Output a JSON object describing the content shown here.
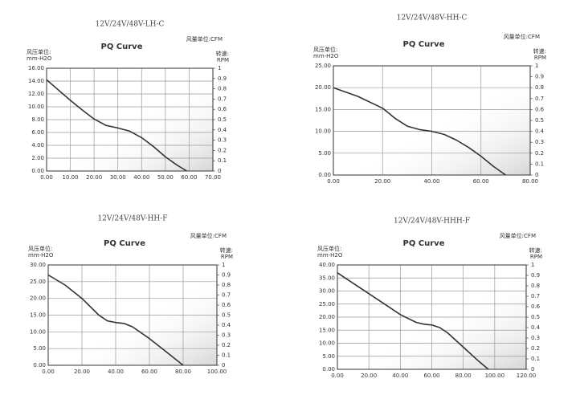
{
  "chart_data": [
    {
      "type": "line",
      "title": "12V/24V/48V-LH-C",
      "subtitle": "PQ Curve",
      "x_label": "风量单位:CFM",
      "y_label": "风压单位:",
      "y_unit": "mm-H2O",
      "y2_label": "转速:",
      "y2_unit": "RPM",
      "color": "#333333",
      "grid": true,
      "x": [
        0,
        5,
        10,
        15,
        20,
        25,
        30,
        35,
        40,
        45,
        50,
        55,
        59
      ],
      "values": [
        14.2,
        12.6,
        11,
        9.5,
        8.1,
        7.1,
        6.7,
        6.2,
        5.2,
        3.8,
        2.2,
        0.9,
        0
      ],
      "xlim": [
        0,
        70
      ],
      "xticks": [
        {
          "value": 0,
          "label": "0.00"
        },
        {
          "value": 10,
          "label": "10.00"
        },
        {
          "value": 20,
          "label": "20.00"
        },
        {
          "value": 30,
          "label": "30.00"
        },
        {
          "value": 40,
          "label": "40.00"
        },
        {
          "value": 50,
          "label": "50.00"
        },
        {
          "value": 60,
          "label": "60.00"
        },
        {
          "value": 70,
          "label": "70.00"
        }
      ],
      "ylim": [
        0,
        16
      ],
      "yticks": [
        {
          "value": 0,
          "label": "0.00"
        },
        {
          "value": 2,
          "label": "2.00"
        },
        {
          "value": 4,
          "label": "4.00"
        },
        {
          "value": 6,
          "label": "6.00"
        },
        {
          "value": 8,
          "label": "8.00"
        },
        {
          "value": 10,
          "label": "10.00"
        },
        {
          "value": 12,
          "label": "12.00"
        },
        {
          "value": 14,
          "label": "14.00"
        },
        {
          "value": 16,
          "label": "16.00"
        }
      ],
      "y2lim": [
        0,
        1
      ],
      "y2ticks": [
        0,
        0.1,
        0.2,
        0.3,
        0.4,
        0.5,
        0.6,
        0.7,
        0.8,
        0.9,
        1
      ]
    },
    {
      "type": "line",
      "title": "12V/24V/48V-HH-C",
      "subtitle": "PQ Curve",
      "x_label": "风量单位:CFM",
      "y_label": "风压单位:",
      "y_unit": "mm-H2O",
      "y2_label": "转速:",
      "y2_unit": "RPM",
      "color": "#333333",
      "grid": true,
      "x": [
        0,
        10,
        20,
        25,
        30,
        35,
        40,
        45,
        50,
        55,
        60,
        65,
        70
      ],
      "values": [
        20,
        18,
        15.3,
        13,
        11.2,
        10.4,
        10,
        9.3,
        8,
        6.3,
        4.3,
        2,
        0
      ],
      "xlim": [
        0,
        80
      ],
      "xticks": [
        {
          "value": 0,
          "label": "0.00"
        },
        {
          "value": 20,
          "label": "20.00"
        },
        {
          "value": 40,
          "label": "40.00"
        },
        {
          "value": 60,
          "label": "60.00"
        },
        {
          "value": 80,
          "label": "80.00"
        }
      ],
      "ylim": [
        0,
        25
      ],
      "yticks": [
        {
          "value": 0,
          "label": "0.00"
        },
        {
          "value": 5,
          "label": "5.00"
        },
        {
          "value": 10,
          "label": "10.00"
        },
        {
          "value": 15,
          "label": "15.00"
        },
        {
          "value": 20,
          "label": "20.00"
        },
        {
          "value": 25,
          "label": "25.00"
        }
      ],
      "y2lim": [
        0,
        1
      ],
      "y2ticks": [
        0,
        0.1,
        0.2,
        0.3,
        0.4,
        0.5,
        0.6,
        0.7,
        0.8,
        0.9,
        1
      ]
    },
    {
      "type": "line",
      "title": "12V/24V/48V-HH-F",
      "subtitle": "PQ Curve",
      "x_label": "风量单位:CFM",
      "y_label": "风压单位:",
      "y_unit": "mm-H2O",
      "y2_label": "转速:",
      "y2_unit": "RPM",
      "color": "#333333",
      "grid": true,
      "x": [
        0,
        10,
        20,
        25,
        30,
        35,
        40,
        45,
        50,
        60,
        70,
        80
      ],
      "values": [
        27,
        24,
        20,
        17.5,
        15,
        13.3,
        12.8,
        12.5,
        11.5,
        8,
        4,
        0
      ],
      "xlim": [
        0,
        100
      ],
      "xticks": [
        {
          "value": 0,
          "label": "0.00"
        },
        {
          "value": 20,
          "label": "20.00"
        },
        {
          "value": 40,
          "label": "40.00"
        },
        {
          "value": 60,
          "label": "60.00"
        },
        {
          "value": 80,
          "label": "80.00"
        },
        {
          "value": 100,
          "label": "100.00"
        }
      ],
      "ylim": [
        0,
        30
      ],
      "yticks": [
        {
          "value": 0,
          "label": "0.00"
        },
        {
          "value": 5,
          "label": "5.00"
        },
        {
          "value": 10,
          "label": "10.00"
        },
        {
          "value": 15,
          "label": "15.00"
        },
        {
          "value": 20,
          "label": "20.00"
        },
        {
          "value": 25,
          "label": "25.00"
        },
        {
          "value": 30,
          "label": "30.00"
        }
      ],
      "y2lim": [
        0,
        1
      ],
      "y2ticks": [
        0,
        0.1,
        0.2,
        0.3,
        0.4,
        0.5,
        0.6,
        0.7,
        0.8,
        0.9,
        1
      ]
    },
    {
      "type": "line",
      "title": "12V/24V/48V-HHH-F",
      "subtitle": "PQ Curve",
      "x_label": "风量单位:CFM",
      "y_label": "风压单位:",
      "y_unit": "mm-H2O",
      "y2_label": "转速:",
      "y2_unit": "RPM",
      "color": "#333333",
      "grid": true,
      "x": [
        0,
        10,
        20,
        30,
        40,
        50,
        55,
        60,
        65,
        70,
        80,
        90,
        96
      ],
      "values": [
        37,
        33,
        29,
        25,
        21,
        18,
        17.3,
        17,
        16,
        14,
        8.5,
        3,
        0
      ],
      "xlim": [
        0,
        120
      ],
      "xticks": [
        {
          "value": 0,
          "label": "0.00"
        },
        {
          "value": 20,
          "label": "20.00"
        },
        {
          "value": 40,
          "label": "40.00"
        },
        {
          "value": 60,
          "label": "60.00"
        },
        {
          "value": 80,
          "label": "80.00"
        },
        {
          "value": 100,
          "label": "100.00"
        },
        {
          "value": 120,
          "label": "120.00"
        }
      ],
      "ylim": [
        0,
        40
      ],
      "yticks": [
        {
          "value": 0,
          "label": "0.00"
        },
        {
          "value": 5,
          "label": "5.00"
        },
        {
          "value": 10,
          "label": "10.00"
        },
        {
          "value": 15,
          "label": "15.00"
        },
        {
          "value": 20,
          "label": "20.00"
        },
        {
          "value": 25,
          "label": "25.00"
        },
        {
          "value": 30,
          "label": "30.00"
        },
        {
          "value": 35,
          "label": "35.00"
        },
        {
          "value": 40,
          "label": "40.00"
        }
      ],
      "y2lim": [
        0,
        1
      ],
      "y2ticks": [
        0,
        0.1,
        0.2,
        0.3,
        0.4,
        0.5,
        0.6,
        0.7,
        0.8,
        0.9,
        1
      ]
    }
  ]
}
